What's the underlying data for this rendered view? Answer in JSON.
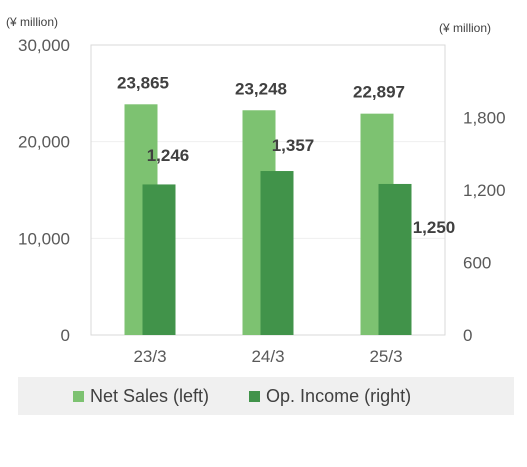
{
  "chart_data": {
    "type": "bar",
    "categories": [
      "23/3",
      "24/3",
      "25/3"
    ],
    "series": [
      {
        "name": "Net Sales (left)",
        "axis": "left",
        "values": [
          23865,
          23248,
          22897
        ],
        "color": "#7dc271"
      },
      {
        "name": "Op. Income (right)",
        "axis": "right",
        "values": [
          1246,
          1357,
          1250
        ],
        "color": "#41934a"
      }
    ],
    "value_labels": {
      "net_sales": [
        "23,865",
        "23,248",
        "22,897"
      ],
      "op_income": [
        "1,246",
        "1,357",
        "1,250"
      ]
    },
    "left_axis": {
      "unit": "(¥ million)",
      "ylim": [
        0,
        30000
      ],
      "ticks": [
        "0",
        "10,000",
        "20,000",
        "30,000"
      ]
    },
    "right_axis": {
      "unit": "(¥ million)",
      "ylim": [
        0,
        2400
      ],
      "ticks": [
        "0",
        "600",
        "1,200",
        "1,800"
      ]
    },
    "grid": true,
    "legend": "bottom"
  }
}
